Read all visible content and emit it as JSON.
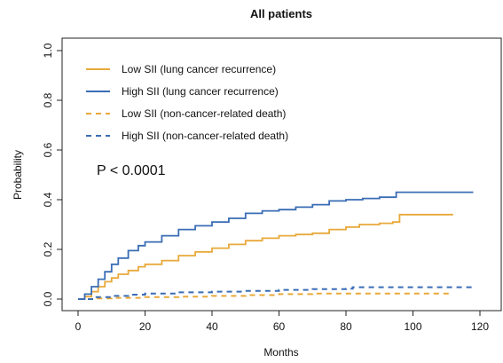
{
  "chart_data": {
    "type": "line",
    "title": "All patients",
    "xlabel": "Months",
    "ylabel": "Probability",
    "xlim": [
      0,
      120
    ],
    "ylim": [
      0,
      1.0
    ],
    "xticks": [
      "0",
      "20",
      "40",
      "60",
      "80",
      "100",
      "120"
    ],
    "yticks": [
      "0.0",
      "0.2",
      "0.4",
      "0.6",
      "0.8",
      "1.0"
    ],
    "grid": false,
    "legend_position": "top-left",
    "annotation": "P < 0.0001",
    "series": [
      {
        "name": "Low SII (lung cancer recurrence)",
        "color": "#E8A93A",
        "style": "solid",
        "x": [
          0,
          2,
          4,
          6,
          8,
          10,
          12,
          15,
          18,
          20,
          25,
          30,
          35,
          40,
          45,
          50,
          55,
          60,
          65,
          70,
          75,
          80,
          82,
          84,
          90,
          94,
          96,
          100,
          105,
          110,
          112
        ],
        "y": [
          0,
          0.01,
          0.03,
          0.05,
          0.07,
          0.085,
          0.1,
          0.115,
          0.13,
          0.14,
          0.155,
          0.175,
          0.19,
          0.205,
          0.22,
          0.235,
          0.245,
          0.255,
          0.26,
          0.265,
          0.28,
          0.29,
          0.29,
          0.3,
          0.305,
          0.31,
          0.34,
          0.34,
          0.34,
          0.34,
          0.34
        ]
      },
      {
        "name": "High SII (lung cancer recurrence)",
        "color": "#3A6DB5",
        "style": "solid",
        "x": [
          0,
          2,
          4,
          6,
          8,
          10,
          12,
          15,
          18,
          20,
          25,
          30,
          35,
          40,
          45,
          50,
          55,
          60,
          65,
          70,
          75,
          80,
          85,
          90,
          94,
          95,
          100,
          105,
          110,
          115,
          118
        ],
        "y": [
          0,
          0.02,
          0.05,
          0.08,
          0.11,
          0.14,
          0.165,
          0.195,
          0.215,
          0.23,
          0.255,
          0.28,
          0.295,
          0.31,
          0.325,
          0.345,
          0.355,
          0.36,
          0.37,
          0.38,
          0.395,
          0.4,
          0.405,
          0.41,
          0.41,
          0.43,
          0.43,
          0.43,
          0.43,
          0.43,
          0.43
        ]
      },
      {
        "name": "Low SII (non-cancer-related death)",
        "color": "#E8A93A",
        "style": "dashed",
        "x": [
          0,
          5,
          10,
          20,
          30,
          40,
          50,
          60,
          65,
          70,
          80,
          90,
          100,
          112
        ],
        "y": [
          0,
          0.003,
          0.005,
          0.008,
          0.01,
          0.013,
          0.016,
          0.02,
          0.02,
          0.022,
          0.022,
          0.022,
          0.022,
          0.022
        ]
      },
      {
        "name": "High SII (non-cancer-related death)",
        "color": "#3A6DB5",
        "style": "dashed",
        "x": [
          0,
          5,
          10,
          15,
          20,
          30,
          40,
          50,
          60,
          70,
          80,
          82,
          90,
          100,
          110,
          118
        ],
        "y": [
          0,
          0.008,
          0.013,
          0.018,
          0.022,
          0.027,
          0.03,
          0.033,
          0.037,
          0.04,
          0.042,
          0.048,
          0.048,
          0.048,
          0.048,
          0.048
        ]
      }
    ]
  }
}
